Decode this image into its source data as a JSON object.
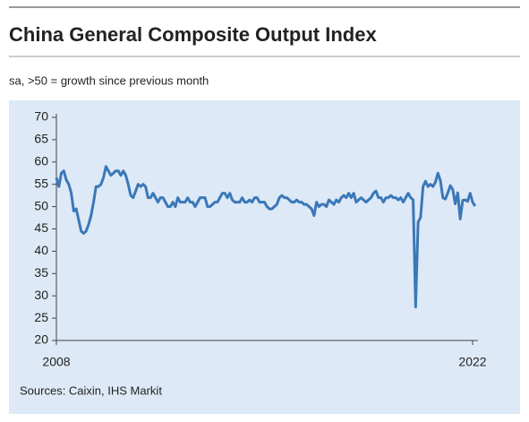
{
  "chart_data": {
    "type": "line",
    "title": "China General Composite Output Index",
    "subtitle": "sa, >50 = growth since previous month",
    "source": "Sources: Caixin, IHS Markit",
    "categories": [
      "2008",
      null,
      null,
      null,
      null,
      null,
      null,
      null,
      null,
      null,
      null,
      null,
      null,
      null,
      null,
      null,
      null,
      null,
      null,
      null,
      null,
      null,
      null,
      null,
      null,
      null,
      null,
      null,
      null,
      null,
      null,
      null,
      null,
      null,
      null,
      null,
      null,
      null,
      null,
      null,
      null,
      null,
      null,
      null,
      null,
      null,
      null,
      null,
      null,
      null,
      null,
      null,
      null,
      null,
      null,
      null,
      null,
      null,
      null,
      null,
      null,
      null,
      null,
      null,
      null,
      null,
      null,
      null,
      null,
      null,
      null,
      null,
      null,
      null,
      null,
      null,
      null,
      null,
      null,
      null,
      null,
      null,
      null,
      null,
      null,
      null,
      null,
      null,
      null,
      null,
      null,
      null,
      null,
      null,
      null,
      null,
      null,
      null,
      null,
      null,
      null,
      null,
      null,
      null,
      null,
      null,
      null,
      null,
      null,
      null,
      null,
      null,
      null,
      null,
      null,
      null,
      null,
      null,
      null,
      null,
      null,
      null,
      null,
      null,
      null,
      null,
      null,
      null,
      null,
      null,
      null,
      null,
      null,
      null,
      null,
      null,
      null,
      null,
      null,
      null,
      null,
      null,
      null,
      null,
      null,
      null,
      null,
      null,
      null,
      null,
      null,
      null,
      null,
      null,
      null,
      null,
      null,
      null,
      null,
      null,
      null,
      null,
      null,
      null,
      null,
      null,
      null,
      null,
      "2022",
      null
    ],
    "series": [
      {
        "name": "China General Composite Output Index",
        "color": "#3a78b8",
        "values": [
          56.5,
          54.5,
          57.5,
          58,
          56,
          55,
          53,
          49,
          49.5,
          47,
          44.5,
          44,
          44.5,
          46,
          48,
          51,
          54.5,
          54.5,
          55,
          56.5,
          59,
          58,
          57,
          57.5,
          58,
          58,
          57,
          58,
          57,
          55,
          52.5,
          52,
          53.5,
          55,
          54.5,
          55,
          54.5,
          52,
          52,
          53,
          52,
          51,
          52,
          52,
          51,
          50,
          50,
          51,
          50,
          52,
          51,
          51,
          51,
          52,
          51,
          51,
          50,
          51,
          52,
          52,
          52,
          50,
          50,
          50.5,
          51,
          51,
          52,
          53,
          53,
          52,
          53,
          51.5,
          51,
          51,
          51,
          52,
          51,
          51,
          51.5,
          51,
          52,
          52,
          51,
          51,
          51,
          50,
          49.5,
          49.5,
          50,
          50.5,
          52,
          52.5,
          52,
          52,
          51.5,
          51,
          51,
          51.5,
          51,
          51,
          50.5,
          50.5,
          50,
          49.5,
          48,
          51,
          50,
          50.5,
          50.5,
          50,
          51.5,
          51,
          50.5,
          51.5,
          51,
          52,
          52.5,
          52,
          53,
          52,
          53,
          51,
          51.5,
          52,
          51.5,
          51,
          51.5,
          52,
          53,
          53.5,
          52,
          52,
          51,
          52,
          52,
          52.5,
          52,
          52,
          51.5,
          52,
          51,
          52,
          53,
          52,
          51.5,
          27.5,
          46.5,
          47.6,
          54.5,
          55.7,
          54.5,
          55,
          54.5,
          55.5,
          57.5,
          55.8,
          52,
          51.7,
          53.1,
          54.7,
          53.8,
          50.6,
          53.1,
          47.2,
          51.4,
          51.5,
          51.2,
          53,
          51,
          50.1
        ]
      }
    ],
    "ylim": [
      20,
      70
    ],
    "yticks": [
      20,
      25,
      30,
      35,
      40,
      45,
      50,
      55,
      60,
      65,
      70
    ]
  }
}
